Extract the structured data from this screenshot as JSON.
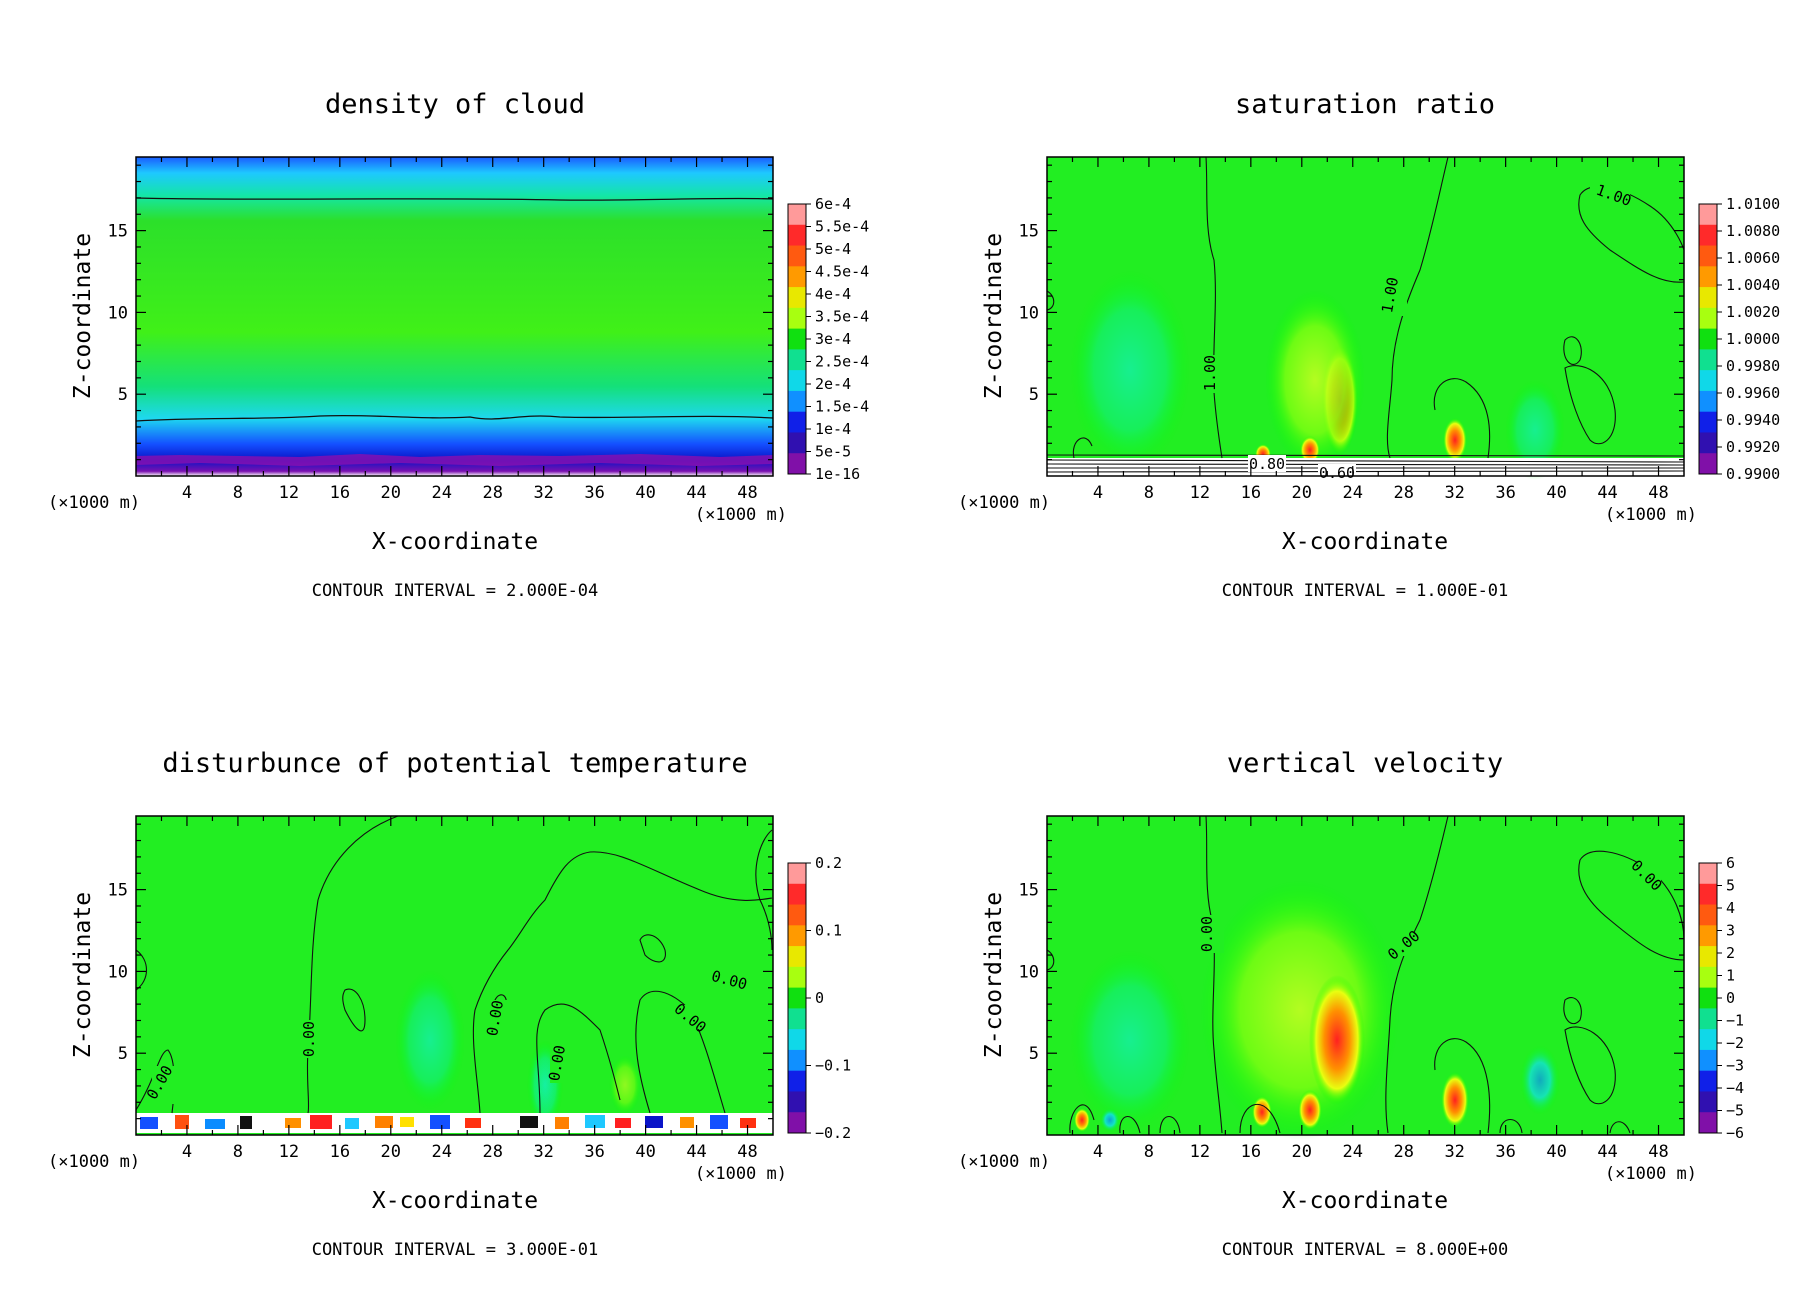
{
  "chart_data": [
    {
      "type": "heatmap",
      "title": "density of cloud",
      "xlabel": "X-coordinate",
      "ylabel": "Z-coordinate",
      "x_unit": "(×1000 m)",
      "y_unit": "(×1000 m)",
      "xlim": [
        0,
        50
      ],
      "ylim": [
        0,
        19.5
      ],
      "x_ticks": [
        "4",
        "8",
        "12",
        "16",
        "20",
        "24",
        "28",
        "32",
        "36",
        "40",
        "44",
        "48"
      ],
      "y_ticks": [
        "5",
        "10",
        "15"
      ],
      "colorbar_labels": [
        "6e-4",
        "5.5e-4",
        "5e-4",
        "4.5e-4",
        "4e-4",
        "3.5e-4",
        "3e-4",
        "2.5e-4",
        "2e-4",
        "1.5e-4",
        "1e-4",
        "5e-5",
        "1e-16"
      ],
      "contour_interval": "CONTOUR INTERVAL = 2.000E-04",
      "contour_labels": []
    },
    {
      "type": "heatmap",
      "title": "saturation ratio",
      "xlabel": "X-coordinate",
      "ylabel": "Z-coordinate",
      "x_unit": "(×1000 m)",
      "y_unit": "(×1000 m)",
      "xlim": [
        0,
        50
      ],
      "ylim": [
        0,
        19.5
      ],
      "x_ticks": [
        "4",
        "8",
        "12",
        "16",
        "20",
        "24",
        "28",
        "32",
        "36",
        "40",
        "44",
        "48"
      ],
      "y_ticks": [
        "5",
        "10",
        "15"
      ],
      "colorbar_labels": [
        "1.0100",
        "1.0080",
        "1.0060",
        "1.0040",
        "1.0020",
        "1.0000",
        "0.9980",
        "0.9960",
        "0.9940",
        "0.9920",
        "0.9900"
      ],
      "contour_interval": "CONTOUR INTERVAL = 1.000E-01",
      "contour_labels": [
        "1.00",
        "1.00",
        "1.00",
        "0.80",
        "0.60"
      ]
    },
    {
      "type": "heatmap",
      "title": "disturbunce of potential temperature",
      "xlabel": "X-coordinate",
      "ylabel": "Z-coordinate",
      "x_unit": "(×1000 m)",
      "y_unit": "(×1000 m)",
      "xlim": [
        0,
        50
      ],
      "ylim": [
        0,
        19.5
      ],
      "x_ticks": [
        "4",
        "8",
        "12",
        "16",
        "20",
        "24",
        "28",
        "32",
        "36",
        "40",
        "44",
        "48"
      ],
      "y_ticks": [
        "5",
        "10",
        "15"
      ],
      "colorbar_labels": [
        "0.2",
        "0.1",
        "0",
        "−0.1",
        "−0.2"
      ],
      "contour_interval": "CONTOUR INTERVAL = 3.000E-01",
      "contour_labels": [
        "0.00",
        "0.00",
        "0.00",
        "0.00",
        "0.00",
        "0.00"
      ]
    },
    {
      "type": "heatmap",
      "title": "vertical velocity",
      "xlabel": "X-coordinate",
      "ylabel": "Z-coordinate",
      "x_unit": "(×1000 m)",
      "y_unit": "(×1000 m)",
      "xlim": [
        0,
        50
      ],
      "ylim": [
        0,
        19.5
      ],
      "x_ticks": [
        "4",
        "8",
        "12",
        "16",
        "20",
        "24",
        "28",
        "32",
        "36",
        "40",
        "44",
        "48"
      ],
      "y_ticks": [
        "5",
        "10",
        "15"
      ],
      "colorbar_labels": [
        "6",
        "5",
        "4",
        "3",
        "2",
        "1",
        "0",
        "−1",
        "−2",
        "−3",
        "−4",
        "−5",
        "−6"
      ],
      "contour_interval": "CONTOUR INTERVAL = 8.000E+00",
      "contour_labels": [
        "0.00",
        "0.00",
        "0.00"
      ]
    }
  ]
}
